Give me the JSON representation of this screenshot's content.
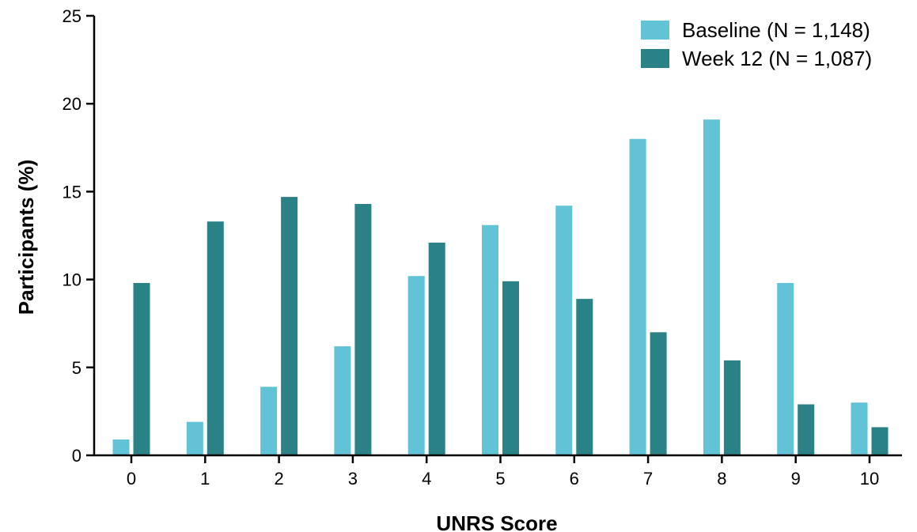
{
  "chart_data": {
    "type": "bar",
    "xlabel": "UNRS Score",
    "ylabel": "Participants (%)",
    "categories": [
      "0",
      "1",
      "2",
      "3",
      "4",
      "5",
      "6",
      "7",
      "8",
      "9",
      "10"
    ],
    "ylim": [
      0,
      25
    ],
    "yticks": [
      "0",
      "5",
      "10",
      "15",
      "20",
      "25"
    ],
    "grid": false,
    "legend_position": "top-right",
    "series": [
      {
        "name": "Baseline (N = 1,148)",
        "color": "#62c3d6",
        "values": [
          0.9,
          1.9,
          3.9,
          6.2,
          10.2,
          13.1,
          14.2,
          18.0,
          19.1,
          9.8,
          3.0
        ]
      },
      {
        "name": "Week 12 (N = 1,087)",
        "color": "#2b8286",
        "values": [
          9.8,
          13.3,
          14.7,
          14.3,
          12.1,
          9.9,
          8.9,
          7.0,
          5.4,
          2.9,
          1.6
        ]
      }
    ]
  }
}
